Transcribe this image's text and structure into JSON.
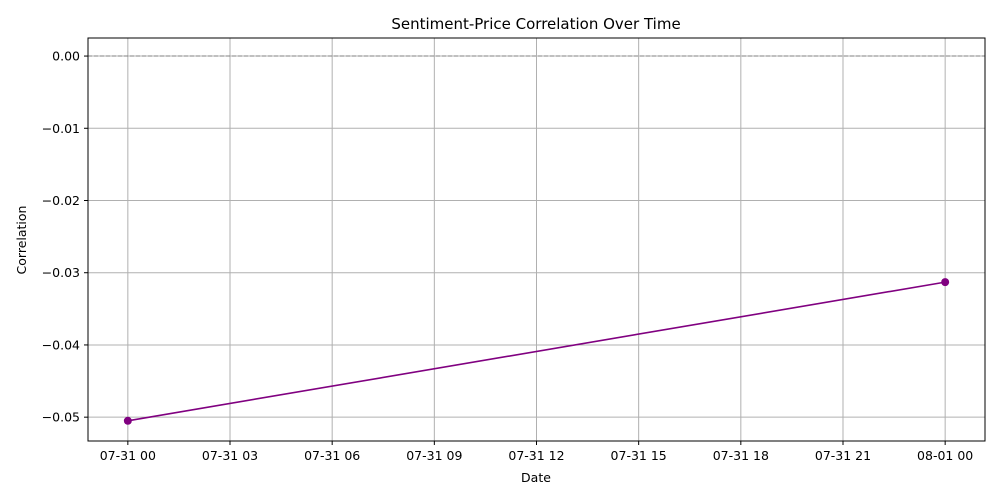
{
  "chart_data": {
    "type": "line",
    "title": "Sentiment-Price Correlation Over Time",
    "xlabel": "Date",
    "ylabel": "Correlation",
    "x_ticks": [
      "07-31 00",
      "07-31 03",
      "07-31 06",
      "07-31 09",
      "07-31 12",
      "07-31 15",
      "07-31 18",
      "07-31 21",
      "08-01 00"
    ],
    "x_range_hours": [
      -1.17,
      25.17
    ],
    "ylim": [
      -0.0533,
      0.0025
    ],
    "y_ticks": [
      0.0,
      -0.01,
      -0.02,
      -0.03,
      -0.04,
      -0.05
    ],
    "y_tick_labels": [
      "0.00",
      "−0.01",
      "−0.02",
      "−0.03",
      "−0.04",
      "−0.05"
    ],
    "grid": true,
    "reference_line": {
      "y": 0.0,
      "style": "dashed",
      "color": "#808080"
    },
    "series": [
      {
        "color": "#800080",
        "marker": "circle",
        "x": [
          "2024-07-31 00:00",
          "2024-08-01 00:00"
        ],
        "x_hours": [
          0,
          24
        ],
        "values": [
          -0.0505,
          -0.0313
        ]
      }
    ]
  }
}
